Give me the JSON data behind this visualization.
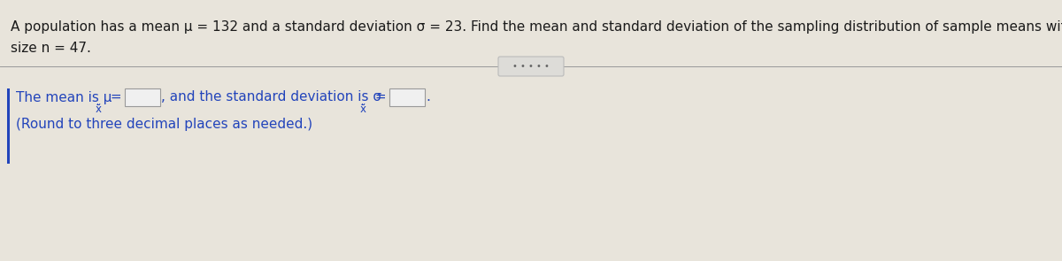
{
  "background_color": "#e8e4db",
  "line1": "A population has a mean μ = 132 and a standard deviation σ = 23. Find the mean and standard deviation of the sampling distribution of sample means with sample",
  "line2": "size n = 47.",
  "separator_dots": "• • • • •",
  "note_line": "(Round to three decimal places as needed.)",
  "text_color": "#1a1a1a",
  "blue_color": "#2244bb",
  "box_color": "#f0f0f0",
  "box_edge_color": "#999999",
  "separator_line_color": "#999999",
  "dots_box_facecolor": "#dddcd8",
  "dots_box_edgecolor": "#bbbbbb",
  "font_size_main": 11.0,
  "font_size_answer": 11.0,
  "font_size_sub": 8.5,
  "font_size_dots": 7.0
}
